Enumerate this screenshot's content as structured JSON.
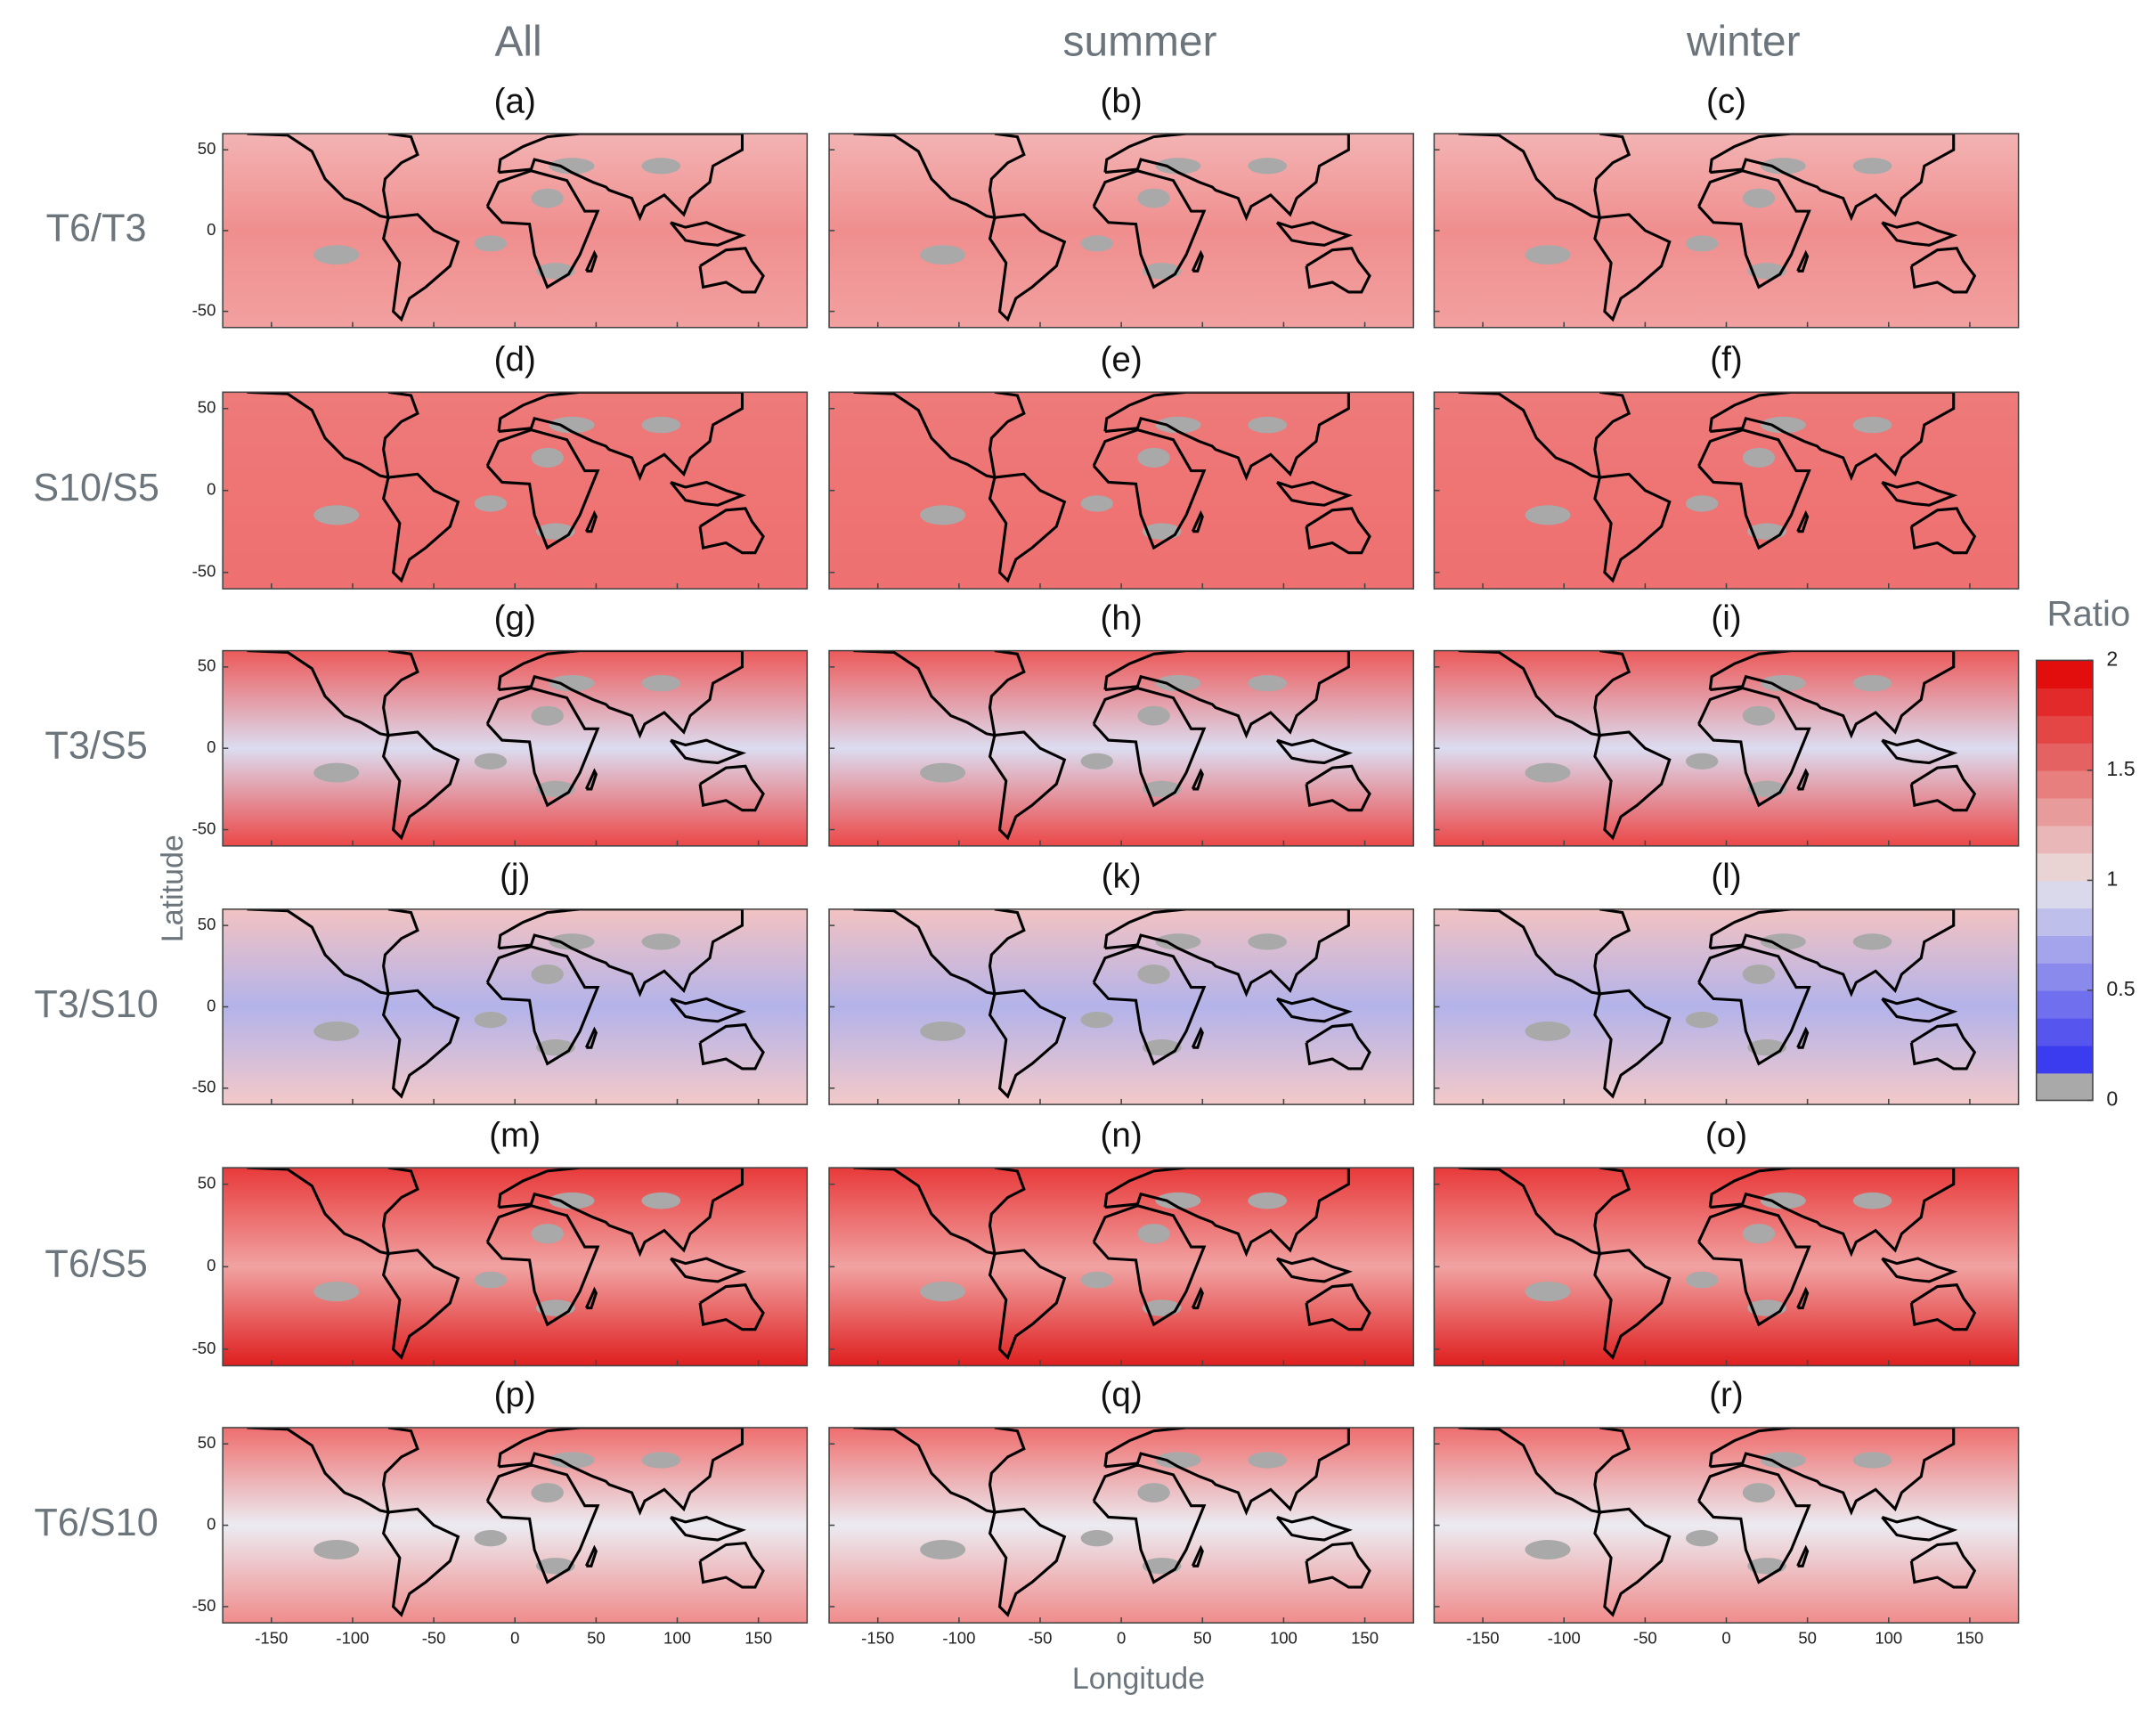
{
  "column_titles": [
    "All",
    "summer",
    "winter"
  ],
  "row_labels": [
    "T6/T3",
    "S10/S5",
    "T3/S5",
    "T3/S10",
    "T6/S5",
    "T6/S10"
  ],
  "panel_labels": [
    "(a)",
    "(b)",
    "(c)",
    "(d)",
    "(e)",
    "(f)",
    "(g)",
    "(h)",
    "(i)",
    "(j)",
    "(k)",
    "(l)",
    "(m)",
    "(n)",
    "(o)",
    "(p)",
    "(q)",
    "(r)"
  ],
  "x_label": "Longitude",
  "y_label": "Latitude",
  "xlim": [
    -180,
    180
  ],
  "xticks": [
    -150,
    -100,
    -50,
    0,
    50,
    100,
    150
  ],
  "ylim": [
    -60,
    60
  ],
  "yticks": [
    -50,
    0,
    50
  ],
  "colorbar": {
    "title": "Ratio",
    "lim": [
      0,
      2
    ],
    "ticks": [
      0,
      0.5,
      1,
      1.5,
      2
    ]
  }
}
